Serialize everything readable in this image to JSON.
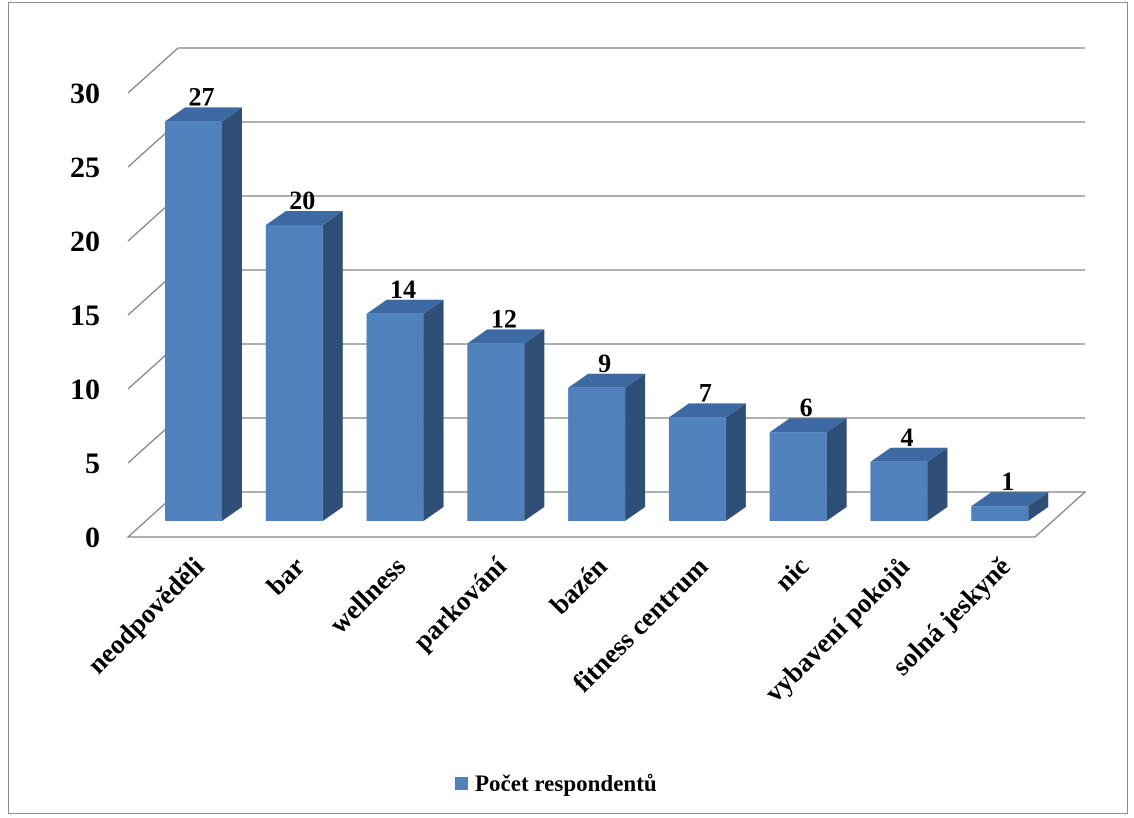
{
  "chart_data": {
    "type": "bar",
    "style": "3d-column",
    "categories": [
      "neodpověděli",
      "bar",
      "wellness",
      "parkování",
      "bazén",
      "fitness centrum",
      "nic",
      "vybavení pokojů",
      "solná jeskyně"
    ],
    "series": [
      {
        "name": "Počet respondentů",
        "values": [
          27,
          20,
          14,
          12,
          9,
          7,
          6,
          4,
          1
        ]
      }
    ],
    "yticks": [
      "0",
      "5",
      "10",
      "15",
      "20",
      "25",
      "30"
    ],
    "ylim": [
      0,
      30
    ],
    "grid": true,
    "legend_position": "bottom",
    "colors": {
      "front": "#4f81bd",
      "side": "#2f4f77",
      "top": "#3d6aa3",
      "grid": "#7f7f7f"
    }
  }
}
